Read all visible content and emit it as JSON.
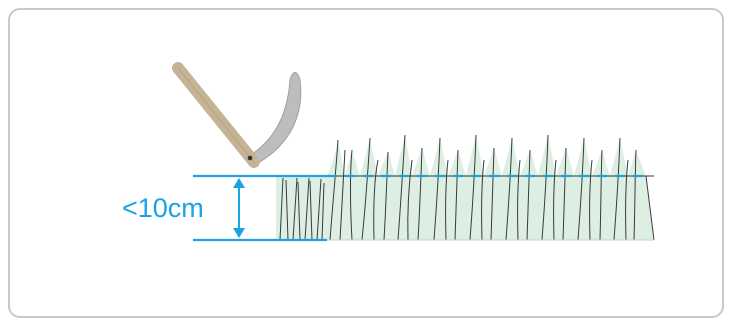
{
  "diagram": {
    "height_label": "<10cm",
    "colors": {
      "accent": "#1aa3e0",
      "frame_border": "#c8c8c8",
      "grass_fill": "#dcefe2",
      "grass_stroke": "#3a3a3a",
      "handle": "#c4b394",
      "blade": "#bdbdbd"
    },
    "icons": [
      "scythe-icon",
      "grass-icon"
    ]
  }
}
